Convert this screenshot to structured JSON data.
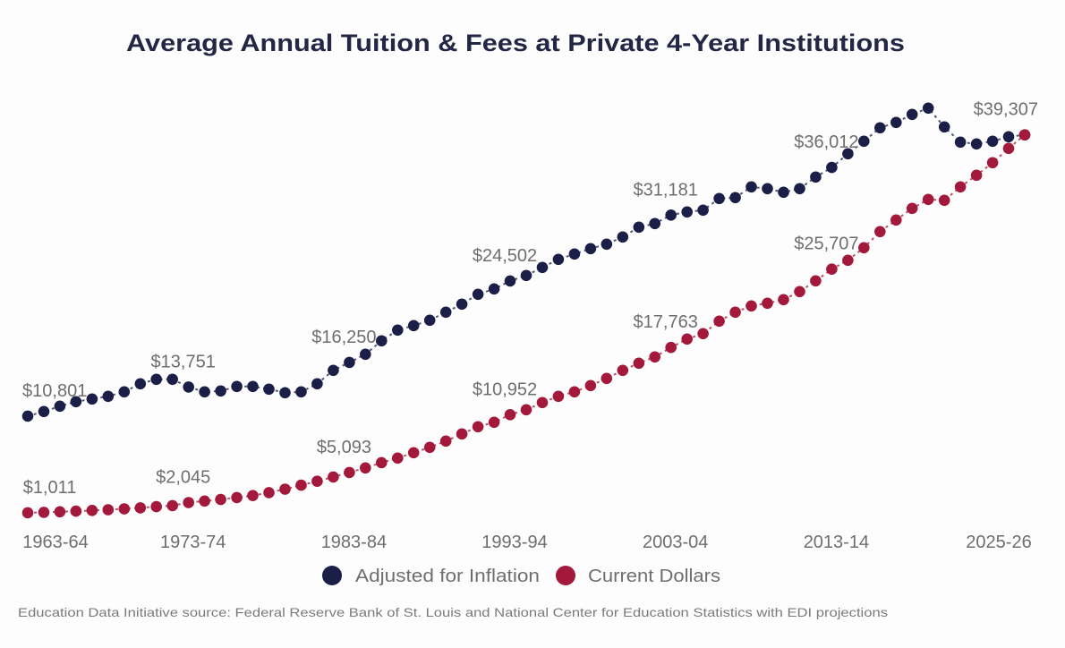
{
  "chart_data": {
    "type": "line",
    "title": "Average Annual Tuition & Fees at Private 4-Year Institutions",
    "xlabel": "",
    "ylabel": "",
    "ylim": [
      0,
      45000
    ],
    "grid": false,
    "legend_position": "bottom-center",
    "x_start_year": 1963,
    "x_tick_labels": [
      {
        "index": 0,
        "label": "1963-64"
      },
      {
        "index": 10,
        "label": "1973-74"
      },
      {
        "index": 20,
        "label": "1983-84"
      },
      {
        "index": 30,
        "label": "1993-94"
      },
      {
        "index": 40,
        "label": "2003-04"
      },
      {
        "index": 50,
        "label": "2013-14"
      },
      {
        "index": 62,
        "label": "2025-26"
      }
    ],
    "x": [
      "1963-64",
      "1964-65",
      "1965-66",
      "1966-67",
      "1967-68",
      "1968-69",
      "1969-70",
      "1970-71",
      "1971-72",
      "1972-73",
      "1973-74",
      "1974-75",
      "1975-76",
      "1976-77",
      "1977-78",
      "1978-79",
      "1979-80",
      "1980-81",
      "1981-82",
      "1982-83",
      "1983-84",
      "1984-85",
      "1985-86",
      "1986-87",
      "1987-88",
      "1988-89",
      "1989-90",
      "1990-91",
      "1991-92",
      "1992-93",
      "1993-94",
      "1994-95",
      "1995-96",
      "1996-97",
      "1997-98",
      "1998-99",
      "1999-00",
      "2000-01",
      "2001-02",
      "2002-03",
      "2003-04",
      "2004-05",
      "2005-06",
      "2006-07",
      "2007-08",
      "2008-09",
      "2009-10",
      "2010-11",
      "2011-12",
      "2012-13",
      "2013-14",
      "2014-15",
      "2015-16",
      "2016-17",
      "2017-18",
      "2018-19",
      "2019-20",
      "2020-21",
      "2021-22",
      "2022-23",
      "2023-24",
      "2024-25",
      "2025-26"
    ],
    "series": [
      {
        "name": "Adjusted for Inflation",
        "color": "#1b1f47",
        "values": [
          10801,
          11265,
          11809,
          12263,
          12535,
          12807,
          13261,
          14078,
          14531,
          14531,
          13751,
          13261,
          13352,
          13805,
          13805,
          13533,
          13170,
          13261,
          14078,
          15439,
          16250,
          17072,
          18433,
          19522,
          19976,
          20520,
          21337,
          22153,
          23151,
          23696,
          24502,
          25057,
          25874,
          26690,
          27235,
          27779,
          28233,
          28959,
          29957,
          30320,
          31181,
          31500,
          31681,
          32861,
          32951,
          34040,
          33859,
          33496,
          33859,
          35039,
          36012,
          37398,
          38668,
          40029,
          40574,
          41390,
          42026,
          40120,
          38577,
          38396,
          38668,
          39122,
          39307
        ],
        "labeled_points": [
          {
            "index": 0,
            "text": "$10,801"
          },
          {
            "index": 10,
            "text": "$13,751"
          },
          {
            "index": 20,
            "text": "$16,250"
          },
          {
            "index": 30,
            "text": "$24,502"
          },
          {
            "index": 40,
            "text": "$31,181"
          },
          {
            "index": 50,
            "text": "$36,012"
          },
          {
            "index": 62,
            "text": "$39,307"
          }
        ]
      },
      {
        "name": "Current Dollars",
        "color": "#a3193c",
        "values": [
          1011,
          1050,
          1110,
          1170,
          1240,
          1320,
          1410,
          1510,
          1620,
          1730,
          2045,
          2200,
          2350,
          2550,
          2750,
          3050,
          3400,
          3800,
          4200,
          4640,
          5093,
          5548,
          6092,
          6546,
          7091,
          7635,
          8270,
          8996,
          9722,
          10175,
          10952,
          11446,
          12172,
          12808,
          13261,
          13896,
          14622,
          15439,
          16165,
          16800,
          17763,
          18614,
          19159,
          20429,
          21337,
          21972,
          22244,
          22607,
          23424,
          24513,
          25707,
          26600,
          27870,
          29504,
          30683,
          31863,
          32770,
          32680,
          34040,
          35220,
          36490,
          37942,
          39307
        ],
        "labeled_points": [
          {
            "index": 0,
            "text": "$1,011"
          },
          {
            "index": 10,
            "text": "$2,045"
          },
          {
            "index": 20,
            "text": "$5,093"
          },
          {
            "index": 30,
            "text": "$10,952"
          },
          {
            "index": 40,
            "text": "$17,763"
          },
          {
            "index": 50,
            "text": "$25,707"
          }
        ]
      }
    ]
  },
  "legend": {
    "items": [
      {
        "label": "Adjusted for Inflation",
        "color": "#1b1f47"
      },
      {
        "label": "Current Dollars",
        "color": "#a3193c"
      }
    ]
  },
  "footer": {
    "source_text": "Education Data Initiative source: Federal Reserve Bank of St. Louis and National Center for Education Statistics with EDI projections"
  },
  "colors": {
    "background": "#fdfdfd",
    "title": "#232644",
    "label_gray": "#6e6e6e"
  }
}
